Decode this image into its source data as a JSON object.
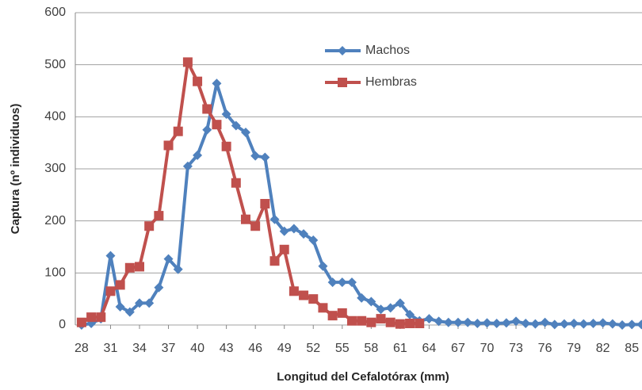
{
  "chart_data": {
    "type": "line",
    "x_label": "Longitud del Cefalotórax (mm)",
    "y_label": "Captura (nº individuos)",
    "x": [
      28,
      29,
      30,
      31,
      32,
      33,
      34,
      35,
      36,
      37,
      38,
      39,
      40,
      41,
      42,
      43,
      44,
      45,
      46,
      47,
      48,
      49,
      50,
      51,
      52,
      53,
      54,
      55,
      56,
      57,
      58,
      59,
      60,
      61,
      62,
      63,
      64,
      65,
      66,
      67,
      68,
      69,
      70,
      71,
      72,
      73,
      74,
      75,
      76,
      77,
      78,
      79,
      80,
      81,
      82,
      83,
      84,
      85,
      86
    ],
    "xlim": [
      27.35,
      86.05
    ],
    "xticks": [
      28,
      31,
      34,
      37,
      40,
      43,
      46,
      49,
      52,
      55,
      58,
      61,
      64,
      67,
      70,
      73,
      76,
      79,
      82,
      85
    ],
    "ylim": [
      0,
      600
    ],
    "yticks": [
      0,
      100,
      200,
      300,
      400,
      500,
      600
    ],
    "grid": true,
    "legend": "top",
    "series": [
      {
        "name": "Machos",
        "color": "#4f81bd",
        "marker": "diamond",
        "values": [
          0,
          3,
          12,
          133,
          35,
          25,
          42,
          42,
          72,
          127,
          107,
          305,
          326,
          375,
          464,
          405,
          383,
          370,
          325,
          322,
          203,
          180,
          185,
          175,
          163,
          113,
          82,
          82,
          82,
          52,
          45,
          30,
          33,
          42,
          20,
          8,
          12,
          7,
          5,
          5,
          5,
          3,
          4,
          3,
          4,
          7,
          3,
          2,
          5,
          1,
          2,
          3,
          2,
          3,
          4,
          2,
          0,
          1,
          1
        ]
      },
      {
        "name": "Hembras",
        "color": "#c0504d",
        "marker": "square",
        "values": [
          5,
          15,
          15,
          65,
          77,
          110,
          112,
          190,
          210,
          345,
          372,
          505,
          468,
          415,
          385,
          343,
          273,
          203,
          190,
          233,
          123,
          145,
          65,
          57,
          50,
          33,
          18,
          23,
          8,
          8,
          5,
          12,
          5,
          2,
          3,
          3,
          null,
          null,
          null,
          null,
          null,
          null,
          null,
          null,
          null,
          null,
          null,
          null,
          null,
          null,
          null,
          null,
          null,
          null,
          null,
          null,
          null,
          null,
          null
        ]
      }
    ]
  }
}
